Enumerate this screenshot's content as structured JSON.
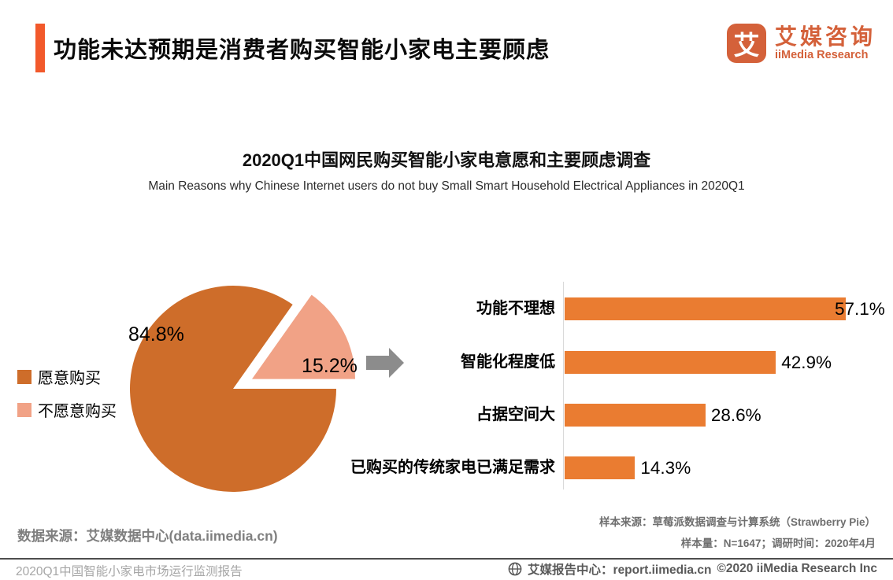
{
  "header": {
    "title": "功能未达预期是消费者购买智能小家电主要顾虑",
    "logo": {
      "icon_char": "艾",
      "name_cn": "艾媒咨询",
      "name_en": "iiMedia Research"
    }
  },
  "chart_header": {
    "title": "2020Q1中国网民购买智能小家电意愿和主要顾虑调查",
    "subtitle": "Main Reasons why Chinese Internet users do not buy Small Smart Household Electrical Appliances  in 2020Q1"
  },
  "chart_data": [
    {
      "type": "pie",
      "legend_position": "left",
      "exploded_slice": "不愿意购买",
      "slices": [
        {
          "label": "愿意购买",
          "value": 84.8,
          "display": "84.8%",
          "color": "#ce6d2a"
        },
        {
          "label": "不愿意购买",
          "value": 15.2,
          "display": "15.2%",
          "color": "#f1a286"
        }
      ]
    },
    {
      "type": "bar",
      "orientation": "horizontal",
      "categories": [
        "功能不理想",
        "智能化程度低",
        "占据空间大",
        "已购买的传统家电已满足需求"
      ],
      "values": [
        57.1,
        42.9,
        28.6,
        14.3
      ],
      "value_labels": [
        "57.1%",
        "42.9%",
        "28.6%",
        "14.3%"
      ],
      "color": "#ea7c31",
      "xlim": [
        0,
        60
      ],
      "grid": false
    }
  ],
  "notes": {
    "data_source": "数据来源：艾媒数据中心(data.iimedia.cn)",
    "sample_source": "样本来源：草莓派数据调查与计算系统（Strawberry Pie）",
    "sample_info": "样本量：N=1647；调研时间：2020年4月"
  },
  "footer": {
    "report_name": "2020Q1中国智能小家电市场运行监测报告",
    "center_label": "艾媒报告中心：report.iimedia.cn",
    "copyright": "©2020  iiMedia Research Inc"
  },
  "colors": {
    "accent_orange": "#f2592b",
    "logo_orange": "#d4613a",
    "pie_main_orange": "#ce6d2a",
    "pie_exploded_salmon": "#f1a286",
    "bar_orange": "#ea7c31",
    "arrow_gray": "#8c8c8c",
    "note_gray": "#7f7f7f",
    "footer_gray": "#595959"
  }
}
